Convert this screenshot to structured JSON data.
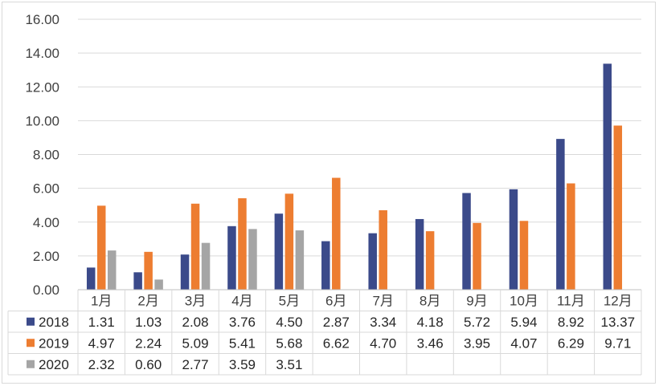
{
  "chart_data": {
    "type": "bar",
    "categories": [
      "1月",
      "2月",
      "3月",
      "4月",
      "5月",
      "6月",
      "7月",
      "8月",
      "9月",
      "10月",
      "11月",
      "12月"
    ],
    "series": [
      {
        "name": "2018",
        "color": "#3b4a8a",
        "values": [
          1.31,
          1.03,
          2.08,
          3.76,
          4.5,
          2.87,
          3.34,
          4.18,
          5.72,
          5.94,
          8.92,
          13.37
        ],
        "labels": [
          "1.31",
          "1.03",
          "2.08",
          "3.76",
          "4.50",
          "2.87",
          "3.34",
          "4.18",
          "5.72",
          "5.94",
          "8.92",
          "13.37"
        ]
      },
      {
        "name": "2019",
        "color": "#ed7d31",
        "values": [
          4.97,
          2.24,
          5.09,
          5.41,
          5.68,
          6.62,
          4.7,
          3.46,
          3.95,
          4.07,
          6.29,
          9.71
        ],
        "labels": [
          "4.97",
          "2.24",
          "5.09",
          "5.41",
          "5.68",
          "6.62",
          "4.70",
          "3.46",
          "3.95",
          "4.07",
          "6.29",
          "9.71"
        ]
      },
      {
        "name": "2020",
        "color": "#a5a5a5",
        "values": [
          2.32,
          0.6,
          2.77,
          3.59,
          3.51,
          null,
          null,
          null,
          null,
          null,
          null,
          null
        ],
        "labels": [
          "2.32",
          "0.60",
          "2.77",
          "3.59",
          "3.51",
          "",
          "",
          "",
          "",
          "",
          "",
          ""
        ]
      }
    ],
    "ylim": [
      0,
      16
    ],
    "yticks": [
      "0.00",
      "2.00",
      "4.00",
      "6.00",
      "8.00",
      "10.00",
      "12.00",
      "14.00",
      "16.00"
    ],
    "grid": true,
    "legend": "data-table-left",
    "title": "",
    "xlabel": "",
    "ylabel": ""
  }
}
